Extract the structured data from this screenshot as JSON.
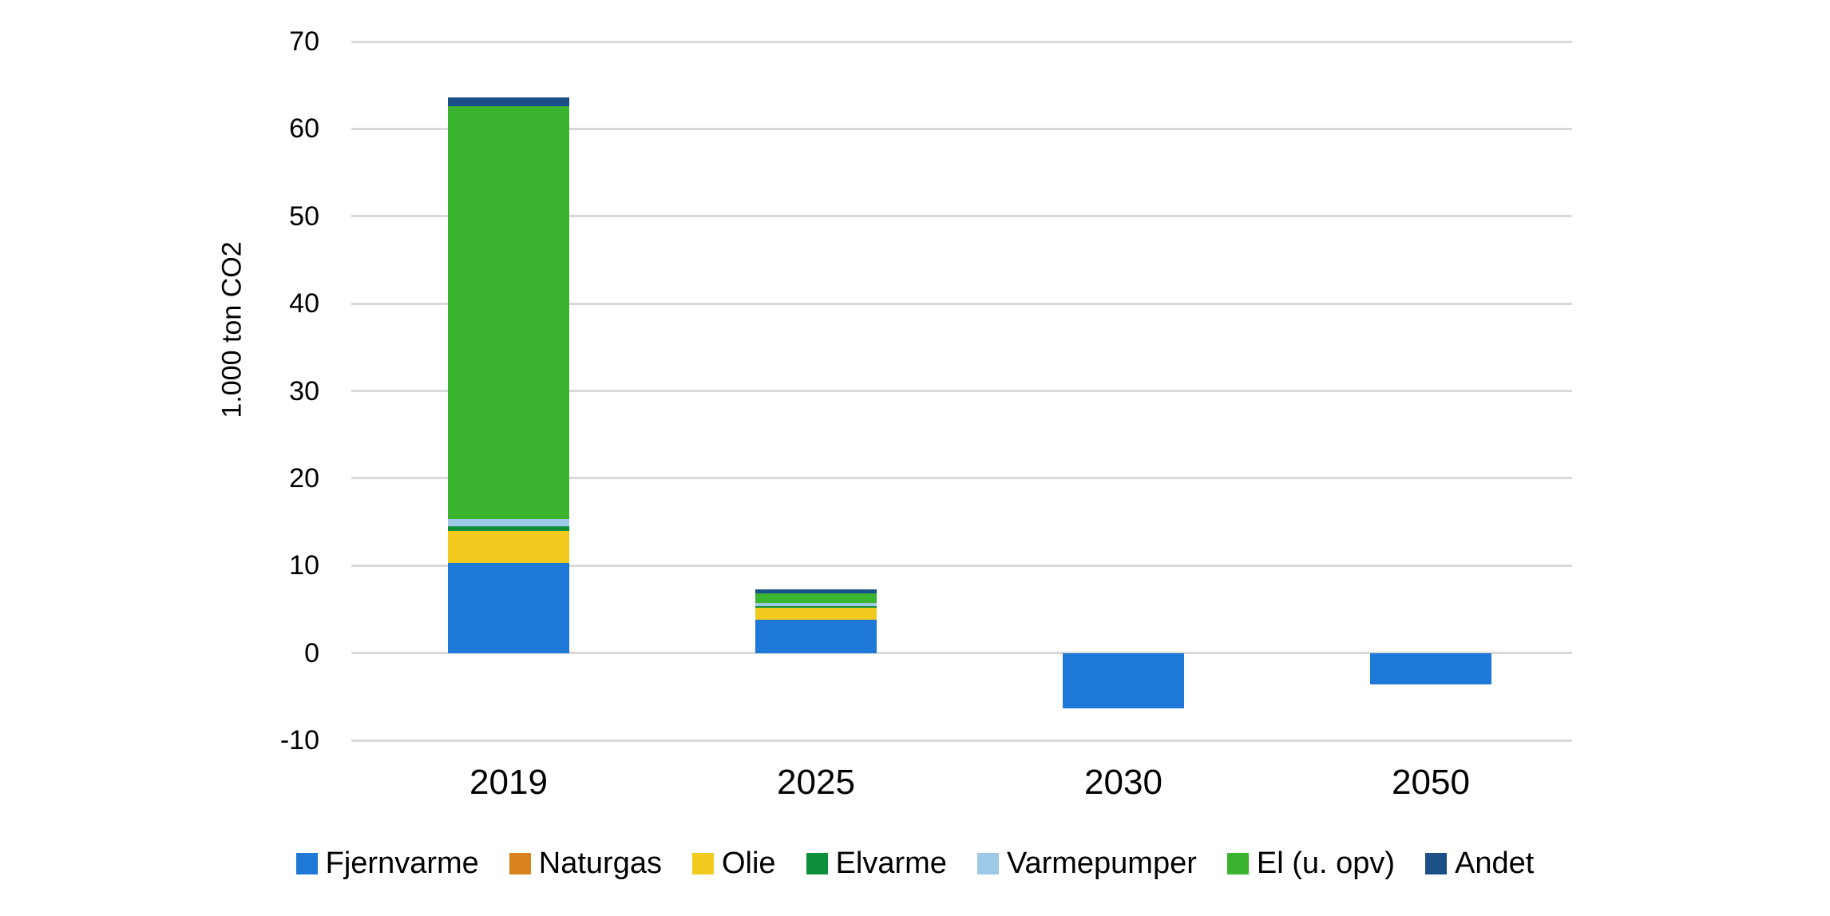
{
  "chart_data": {
    "type": "bar",
    "stacked": true,
    "title": "",
    "xlabel": "",
    "ylabel": "1.000 ton CO2",
    "categories": [
      "2019",
      "2025",
      "2030",
      "2050"
    ],
    "ylim": [
      -10,
      70
    ],
    "yticks": [
      "70",
      "60",
      "50",
      "40",
      "30",
      "20",
      "10",
      "0",
      "-10"
    ],
    "ytick_values": [
      70,
      60,
      50,
      40,
      30,
      20,
      10,
      0,
      -10
    ],
    "grid": "horizontal",
    "legend_position": "bottom",
    "colors": {
      "background": "#ffffff",
      "gridline": "#d9d9d9",
      "text": "#000000"
    },
    "series": [
      {
        "name": "Fjernvarme",
        "color": "#1e78d7",
        "values": [
          10.3,
          3.8,
          -6.3,
          -3.6
        ]
      },
      {
        "name": "Naturgas",
        "color": "#d9831d",
        "values": [
          0,
          0,
          0,
          0
        ]
      },
      {
        "name": "Olie",
        "color": "#f2ca1d",
        "values": [
          3.7,
          1.5,
          0,
          0
        ]
      },
      {
        "name": "Elvarme",
        "color": "#0e8f3a",
        "values": [
          0.5,
          0.1,
          0,
          0
        ]
      },
      {
        "name": "Varmepumper",
        "color": "#9dc9e6",
        "values": [
          0.8,
          0.35,
          0,
          0
        ]
      },
      {
        "name": "El (u. opv)",
        "color": "#3ab42f",
        "values": [
          47.3,
          1.05,
          0,
          0
        ]
      },
      {
        "name": "Andet",
        "color": "#1a4f87",
        "values": [
          1.0,
          0.45,
          0,
          0
        ]
      }
    ]
  }
}
